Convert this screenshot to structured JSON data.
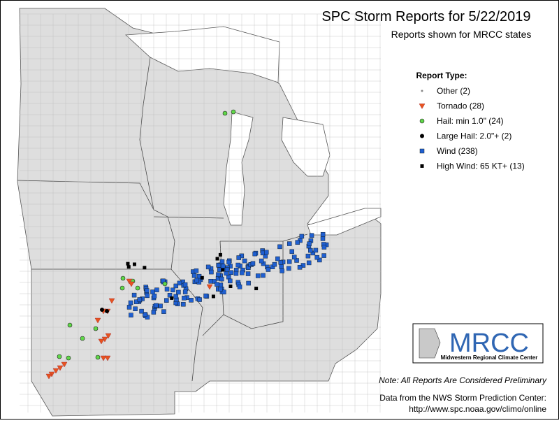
{
  "header": {
    "title": "SPC Storm Reports for 5/22/2019",
    "subtitle": "Reports shown for MRCC states"
  },
  "legend": {
    "title": "Report Type:",
    "items": [
      "Other (2)",
      "Tornado (28)",
      "Hail: min 1.0\" (24)",
      "Large Hail: 2.0\"+ (2)",
      "Wind (238)",
      "High Wind: 65 KT+ (13)"
    ]
  },
  "logo": {
    "name": "MRCC",
    "full_name": "Midwestern Regional Climate Center"
  },
  "footer": {
    "note": "Note: All Reports Are Considered Preliminary",
    "source": "Data from the NWS Storm Prediction Center:",
    "url": "http://www.spc.noaa.gov/climo/online"
  }
}
